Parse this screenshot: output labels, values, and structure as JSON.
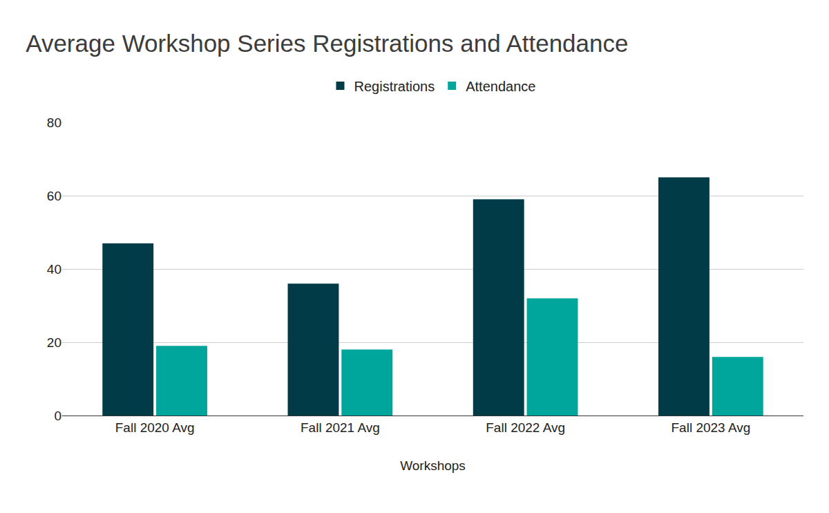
{
  "chart_data": {
    "type": "bar",
    "title": "Average Workshop Series Registrations and Attendance",
    "x_label": "Workshops",
    "categories": [
      "Fall 2020 Avg",
      "Fall 2021 Avg",
      "Fall 2022 Avg",
      "Fall 2023 Avg"
    ],
    "series": [
      {
        "name": "Registrations",
        "color": "#013b47",
        "values": [
          47,
          36,
          59,
          65
        ]
      },
      {
        "name": "Attendance",
        "color": "#00a59b",
        "values": [
          19,
          18,
          32,
          16
        ]
      }
    ],
    "ylim": [
      0,
      80
    ],
    "yticks": [
      0,
      20,
      40,
      60,
      80
    ],
    "grid": true,
    "legend": "top"
  }
}
